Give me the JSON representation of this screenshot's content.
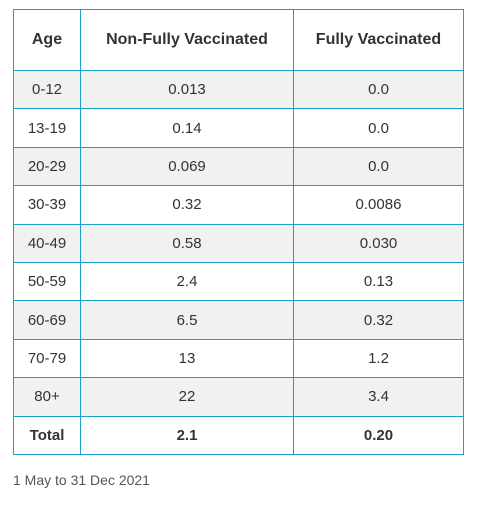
{
  "table": {
    "headers": [
      "Age",
      "Non-Fully Vaccinated",
      "Fully Vaccinated"
    ],
    "rows": [
      [
        "0-12",
        "0.013",
        "0.0"
      ],
      [
        "13-19",
        "0.14",
        "0.0"
      ],
      [
        "20-29",
        "0.069",
        "0.0"
      ],
      [
        "30-39",
        "0.32",
        "0.0086"
      ],
      [
        "40-49",
        "0.58",
        "0.030"
      ],
      [
        "50-59",
        "2.4",
        "0.13"
      ],
      [
        "60-69",
        "6.5",
        "0.32"
      ],
      [
        "70-79",
        "13",
        "1.2"
      ],
      [
        "80+",
        "22",
        "3.4"
      ]
    ],
    "total": [
      "Total",
      "2.1",
      "0.20"
    ]
  },
  "caption": "1 May to 31 Dec 2021"
}
